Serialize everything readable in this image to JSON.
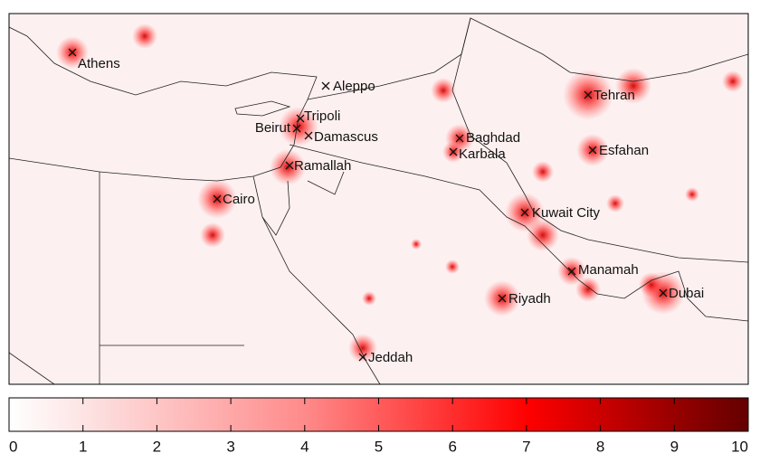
{
  "map": {
    "cities": [
      {
        "label": "Athens"
      },
      {
        "label": "Aleppo"
      },
      {
        "label": "Tripoli"
      },
      {
        "label": "Beirut"
      },
      {
        "label": "Damascus"
      },
      {
        "label": "Ramallah"
      },
      {
        "label": "Cairo"
      },
      {
        "label": "Baghdad"
      },
      {
        "label": "Karbala"
      },
      {
        "label": "Tehran"
      },
      {
        "label": "Esfahan"
      },
      {
        "label": "Kuwait City"
      },
      {
        "label": "Manamah"
      },
      {
        "label": "Riyadh"
      },
      {
        "label": "Dubai"
      },
      {
        "label": "Jeddah"
      }
    ]
  },
  "colorbar": {
    "lim": [
      0,
      10
    ],
    "ticks": [
      0,
      1,
      2,
      3,
      4,
      5,
      6,
      7,
      8,
      9,
      10
    ]
  }
}
